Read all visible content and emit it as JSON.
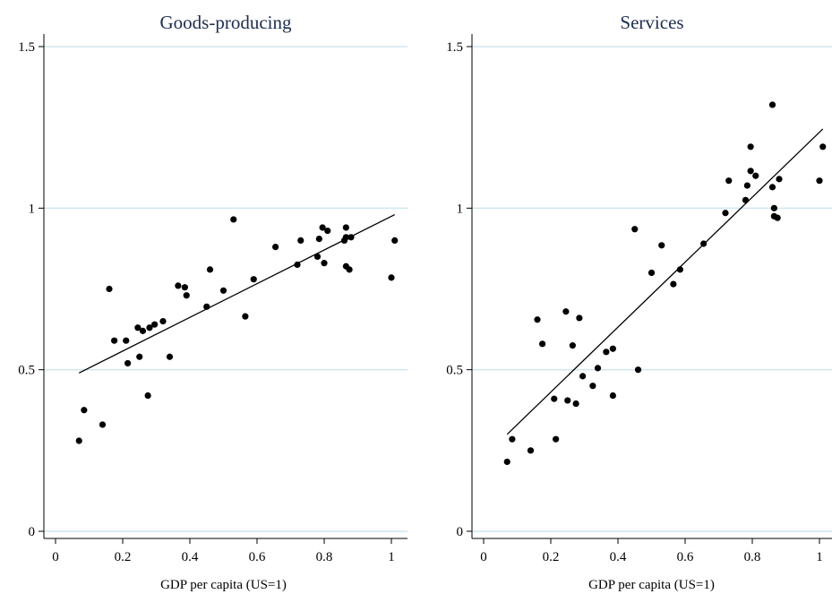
{
  "chart_data": [
    {
      "type": "scatter",
      "title": "Goods-producing",
      "xlabel": "GDP per capita (US=1)",
      "ylabel": "",
      "xlim": [
        0,
        1.02
      ],
      "ylim": [
        0,
        1.5
      ],
      "xticks": [
        "0",
        "0.2",
        "0.4",
        "0.6",
        "0.8",
        "1"
      ],
      "yticks": [
        "0",
        "0.5",
        "1",
        "1.5"
      ],
      "grid": "horizontal",
      "fit_line": {
        "x": [
          0.07,
          1.01
        ],
        "y": [
          0.49,
          0.98
        ]
      },
      "points": [
        [
          0.07,
          0.28
        ],
        [
          0.085,
          0.375
        ],
        [
          0.14,
          0.33
        ],
        [
          0.16,
          0.75
        ],
        [
          0.175,
          0.59
        ],
        [
          0.21,
          0.59
        ],
        [
          0.215,
          0.52
        ],
        [
          0.245,
          0.63
        ],
        [
          0.25,
          0.54
        ],
        [
          0.26,
          0.62
        ],
        [
          0.275,
          0.42
        ],
        [
          0.28,
          0.63
        ],
        [
          0.295,
          0.64
        ],
        [
          0.32,
          0.65
        ],
        [
          0.34,
          0.54
        ],
        [
          0.365,
          0.76
        ],
        [
          0.385,
          0.755
        ],
        [
          0.39,
          0.73
        ],
        [
          0.45,
          0.695
        ],
        [
          0.46,
          0.81
        ],
        [
          0.5,
          0.745
        ],
        [
          0.53,
          0.965
        ],
        [
          0.565,
          0.665
        ],
        [
          0.59,
          0.78
        ],
        [
          0.655,
          0.88
        ],
        [
          0.72,
          0.825
        ],
        [
          0.73,
          0.9
        ],
        [
          0.78,
          0.85
        ],
        [
          0.785,
          0.905
        ],
        [
          0.795,
          0.94
        ],
        [
          0.8,
          0.83
        ],
        [
          0.81,
          0.93
        ],
        [
          0.86,
          0.9
        ],
        [
          0.865,
          0.91
        ],
        [
          0.865,
          0.94
        ],
        [
          0.865,
          0.82
        ],
        [
          0.875,
          0.81
        ],
        [
          0.88,
          0.91
        ],
        [
          1.0,
          0.785
        ],
        [
          1.01,
          0.9
        ]
      ]
    },
    {
      "type": "scatter",
      "title": "Services",
      "xlabel": "GDP per capita (US=1)",
      "ylabel": "",
      "xlim": [
        0,
        1.02
      ],
      "ylim": [
        0,
        1.5
      ],
      "xticks": [
        "0",
        "0.2",
        "0.4",
        "0.6",
        "0.8",
        "1"
      ],
      "yticks": [
        "0",
        "0.5",
        "1",
        "1.5"
      ],
      "grid": "horizontal",
      "fit_line": {
        "x": [
          0.07,
          1.01
        ],
        "y": [
          0.3,
          1.245
        ]
      },
      "points": [
        [
          0.07,
          0.215
        ],
        [
          0.085,
          0.285
        ],
        [
          0.14,
          0.25
        ],
        [
          0.16,
          0.655
        ],
        [
          0.175,
          0.58
        ],
        [
          0.21,
          0.41
        ],
        [
          0.215,
          0.285
        ],
        [
          0.245,
          0.68
        ],
        [
          0.25,
          0.405
        ],
        [
          0.265,
          0.575
        ],
        [
          0.275,
          0.395
        ],
        [
          0.285,
          0.66
        ],
        [
          0.295,
          0.48
        ],
        [
          0.325,
          0.45
        ],
        [
          0.34,
          0.505
        ],
        [
          0.365,
          0.555
        ],
        [
          0.385,
          0.42
        ],
        [
          0.385,
          0.565
        ],
        [
          0.45,
          0.935
        ],
        [
          0.46,
          0.5
        ],
        [
          0.5,
          0.8
        ],
        [
          0.53,
          0.885
        ],
        [
          0.565,
          0.765
        ],
        [
          0.585,
          0.81
        ],
        [
          0.655,
          0.89
        ],
        [
          0.72,
          0.985
        ],
        [
          0.73,
          1.085
        ],
        [
          0.78,
          1.025
        ],
        [
          0.785,
          1.07
        ],
        [
          0.795,
          1.19
        ],
        [
          0.795,
          1.115
        ],
        [
          0.81,
          1.1
        ],
        [
          0.86,
          1.32
        ],
        [
          0.86,
          1.065
        ],
        [
          0.865,
          1.0
        ],
        [
          0.865,
          0.975
        ],
        [
          0.875,
          0.97
        ],
        [
          0.88,
          1.09
        ],
        [
          1.0,
          1.085
        ],
        [
          1.01,
          1.19
        ]
      ]
    }
  ]
}
